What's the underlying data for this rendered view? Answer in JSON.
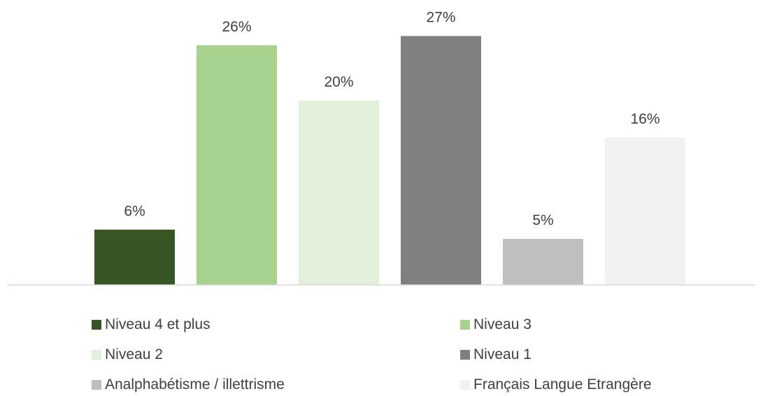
{
  "chart_data": {
    "type": "bar",
    "categories": [
      "Niveau 4 et plus",
      "Niveau 3",
      "Niveau 2",
      "Niveau 1",
      "Analphabétisme / illettrisme",
      "Français Langue Etrangère"
    ],
    "values": [
      6,
      26,
      20,
      27,
      5,
      16
    ],
    "value_labels": [
      "6%",
      "26%",
      "20%",
      "27%",
      "5%",
      "16%"
    ],
    "colors": [
      "#375623",
      "#a9d18e",
      "#e2efda",
      "#808080",
      "#bfbfbf",
      "#f2f2f2"
    ],
    "ylim": [
      0,
      27
    ],
    "unit": "%",
    "grid": false,
    "legend_position": "bottom"
  },
  "legend": {
    "items": [
      {
        "label": "Niveau 4 et plus",
        "color": "#375623"
      },
      {
        "label": "Niveau 3",
        "color": "#a9d18e"
      },
      {
        "label": "Niveau 2",
        "color": "#e2efda"
      },
      {
        "label": "Niveau 1",
        "color": "#808080"
      },
      {
        "label": "Analphabétisme / illettrisme",
        "color": "#bfbfbf"
      },
      {
        "label": "Français Langue Etrangère",
        "color": "#f2f2f2"
      }
    ]
  }
}
